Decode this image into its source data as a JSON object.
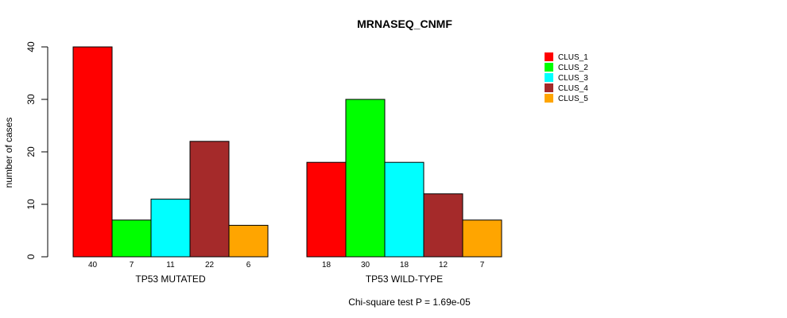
{
  "chart_data": {
    "type": "bar",
    "title": "MRNASEQ_CNMF",
    "ylabel": "number of cases",
    "footnote": "Chi-square test P = 1.69e-05",
    "ylim": [
      0,
      40
    ],
    "yticks": [
      0,
      10,
      20,
      30,
      40
    ],
    "grid": false,
    "legend_position": "top-right",
    "groups": [
      {
        "label": "TP53 MUTATED",
        "values": [
          40,
          7,
          11,
          22,
          6
        ]
      },
      {
        "label": "TP53 WILD-TYPE",
        "values": [
          18,
          30,
          18,
          12,
          7
        ]
      }
    ],
    "series": [
      {
        "name": "CLUS_1",
        "color": "#ff0000"
      },
      {
        "name": "CLUS_2",
        "color": "#00ff00"
      },
      {
        "name": "CLUS_3",
        "color": "#00ffff"
      },
      {
        "name": "CLUS_4",
        "color": "#a52a2a"
      },
      {
        "name": "CLUS_5",
        "color": "#ffa500"
      }
    ]
  }
}
